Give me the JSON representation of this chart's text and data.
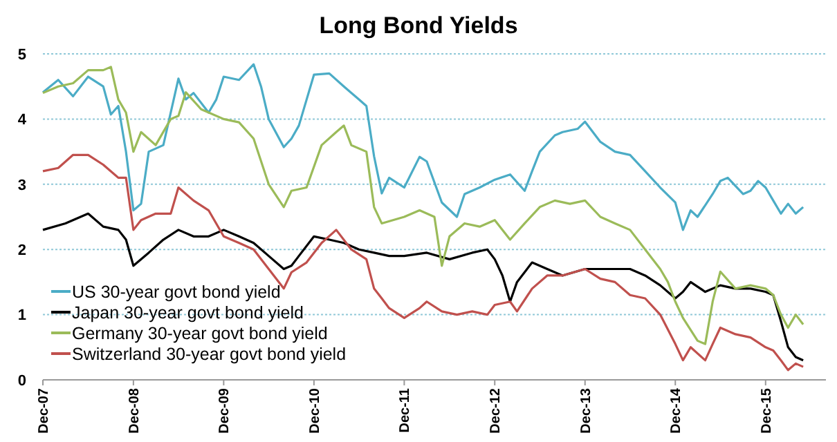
{
  "chart_data": {
    "type": "line",
    "title": "Long Bond Yields",
    "xlim": [
      "2007-12-01",
      "2016-08-01"
    ],
    "xticks": [
      {
        "value": "2007-12-01",
        "label": "Dec-07"
      },
      {
        "value": "2008-12-01",
        "label": "Dec-08"
      },
      {
        "value": "2009-12-01",
        "label": "Dec-09"
      },
      {
        "value": "2010-12-01",
        "label": "Dec-10"
      },
      {
        "value": "2011-12-01",
        "label": "Dec-11"
      },
      {
        "value": "2012-12-01",
        "label": "Dec-12"
      },
      {
        "value": "2013-12-01",
        "label": "Dec-13"
      },
      {
        "value": "2014-12-01",
        "label": "Dec-14"
      },
      {
        "value": "2015-12-01",
        "label": "Dec-15"
      }
    ],
    "ylim": [
      0,
      5
    ],
    "yticks": [
      0,
      1,
      2,
      3,
      4,
      5
    ],
    "grid": "y",
    "legend": "bottom left",
    "marker": "none",
    "line_style": "solid",
    "series": [
      {
        "name": "US 30-year govt bond yield",
        "color": "#4bacc6",
        "x": [
          "2007-12",
          "2008-02",
          "2008-04",
          "2008-06",
          "2008-08",
          "2008-09",
          "2008-10",
          "2008-11",
          "2008-12",
          "2009-01",
          "2009-02",
          "2009-04",
          "2009-06",
          "2009-07",
          "2009-08",
          "2009-10",
          "2009-11",
          "2009-12",
          "2010-02",
          "2010-04",
          "2010-05",
          "2010-06",
          "2010-08",
          "2010-09",
          "2010-10",
          "2010-12",
          "2011-02",
          "2011-04",
          "2011-06",
          "2011-07",
          "2011-08",
          "2011-09",
          "2011-10",
          "2011-12",
          "2012-02",
          "2012-03",
          "2012-05",
          "2012-07",
          "2012-08",
          "2012-10",
          "2012-12",
          "2013-02",
          "2013-04",
          "2013-05",
          "2013-06",
          "2013-08",
          "2013-09",
          "2013-11",
          "2013-12",
          "2014-02",
          "2014-04",
          "2014-06",
          "2014-08",
          "2014-10",
          "2014-12",
          "2015-01",
          "2015-02",
          "2015-03",
          "2015-05",
          "2015-06",
          "2015-07",
          "2015-09",
          "2015-10",
          "2015-11",
          "2015-12",
          "2016-01",
          "2016-02",
          "2016-03",
          "2016-04",
          "2016-05"
        ],
        "values": [
          4.41,
          4.6,
          4.35,
          4.65,
          4.5,
          4.07,
          4.2,
          3.5,
          2.6,
          2.7,
          3.5,
          3.6,
          4.62,
          4.3,
          4.4,
          4.1,
          4.3,
          4.65,
          4.6,
          4.84,
          4.5,
          4.0,
          3.57,
          3.7,
          3.9,
          4.68,
          4.7,
          4.5,
          4.3,
          4.2,
          3.43,
          2.86,
          3.1,
          2.95,
          3.42,
          3.35,
          2.72,
          2.5,
          2.85,
          2.95,
          3.07,
          3.15,
          2.9,
          3.2,
          3.5,
          3.75,
          3.8,
          3.85,
          3.96,
          3.65,
          3.5,
          3.45,
          3.2,
          2.95,
          2.72,
          2.3,
          2.6,
          2.5,
          2.85,
          3.05,
          3.1,
          2.85,
          2.9,
          3.05,
          2.95,
          2.75,
          2.55,
          2.7,
          2.55,
          2.65
        ]
      },
      {
        "name": "Japan 30-year govt bond yield",
        "color": "#000000",
        "x": [
          "2007-12",
          "2008-03",
          "2008-06",
          "2008-08",
          "2008-10",
          "2008-11",
          "2008-12",
          "2009-02",
          "2009-04",
          "2009-06",
          "2009-08",
          "2009-10",
          "2009-12",
          "2010-02",
          "2010-04",
          "2010-06",
          "2010-08",
          "2010-09",
          "2010-10",
          "2010-12",
          "2011-02",
          "2011-04",
          "2011-06",
          "2011-08",
          "2011-10",
          "2011-12",
          "2012-03",
          "2012-06",
          "2012-09",
          "2012-11",
          "2012-12",
          "2013-01",
          "2013-02",
          "2013-03",
          "2013-05",
          "2013-07",
          "2013-09",
          "2013-12",
          "2014-03",
          "2014-06",
          "2014-08",
          "2014-10",
          "2014-12",
          "2015-01",
          "2015-02",
          "2015-04",
          "2015-06",
          "2015-08",
          "2015-10",
          "2015-12",
          "2016-01",
          "2016-02",
          "2016-03",
          "2016-04",
          "2016-05"
        ],
        "values": [
          2.3,
          2.4,
          2.55,
          2.35,
          2.3,
          2.15,
          1.75,
          1.95,
          2.15,
          2.3,
          2.2,
          2.2,
          2.3,
          2.2,
          2.1,
          1.9,
          1.7,
          1.75,
          1.9,
          2.2,
          2.15,
          2.1,
          2.0,
          1.95,
          1.9,
          1.9,
          1.95,
          1.85,
          1.95,
          2.0,
          1.85,
          1.6,
          1.2,
          1.5,
          1.8,
          1.7,
          1.6,
          1.7,
          1.7,
          1.7,
          1.6,
          1.45,
          1.25,
          1.35,
          1.5,
          1.35,
          1.45,
          1.4,
          1.4,
          1.35,
          1.3,
          0.9,
          0.5,
          0.35,
          0.3
        ]
      },
      {
        "name": "Germany 30-year govt bond yield",
        "color": "#9bbb59",
        "x": [
          "2007-12",
          "2008-02",
          "2008-04",
          "2008-06",
          "2008-08",
          "2008-09",
          "2008-10",
          "2008-11",
          "2008-12",
          "2009-01",
          "2009-03",
          "2009-05",
          "2009-06",
          "2009-07",
          "2009-09",
          "2009-12",
          "2010-02",
          "2010-04",
          "2010-06",
          "2010-08",
          "2010-09",
          "2010-11",
          "2011-01",
          "2011-03",
          "2011-04",
          "2011-05",
          "2011-07",
          "2011-08",
          "2011-09",
          "2011-12",
          "2012-02",
          "2012-04",
          "2012-05",
          "2012-06",
          "2012-08",
          "2012-10",
          "2012-12",
          "2013-02",
          "2013-04",
          "2013-06",
          "2013-08",
          "2013-10",
          "2013-12",
          "2014-02",
          "2014-04",
          "2014-06",
          "2014-08",
          "2014-10",
          "2014-11",
          "2014-12",
          "2015-01",
          "2015-03",
          "2015-04",
          "2015-05",
          "2015-06",
          "2015-08",
          "2015-10",
          "2015-12",
          "2016-01",
          "2016-02",
          "2016-03",
          "2016-04",
          "2016-05"
        ],
        "values": [
          4.4,
          4.5,
          4.55,
          4.75,
          4.75,
          4.8,
          4.3,
          4.1,
          3.5,
          3.8,
          3.6,
          4.0,
          4.05,
          4.41,
          4.15,
          4.0,
          3.95,
          3.7,
          3.0,
          2.65,
          2.9,
          2.95,
          3.6,
          3.8,
          3.9,
          3.6,
          3.5,
          2.65,
          2.4,
          2.5,
          2.6,
          2.5,
          1.75,
          2.2,
          2.4,
          2.35,
          2.45,
          2.15,
          2.4,
          2.65,
          2.75,
          2.7,
          2.75,
          2.5,
          2.4,
          2.3,
          2.0,
          1.7,
          1.5,
          1.2,
          0.95,
          0.6,
          0.55,
          1.2,
          1.66,
          1.4,
          1.45,
          1.4,
          1.3,
          1.0,
          0.8,
          1.0,
          0.85
        ]
      },
      {
        "name": "Switzerland 30-year govt bond yield",
        "color": "#c0504d",
        "x": [
          "2007-12",
          "2008-02",
          "2008-04",
          "2008-06",
          "2008-08",
          "2008-10",
          "2008-11",
          "2008-12",
          "2009-01",
          "2009-03",
          "2009-05",
          "2009-06",
          "2009-08",
          "2009-10",
          "2009-12",
          "2010-02",
          "2010-04",
          "2010-06",
          "2010-08",
          "2010-09",
          "2010-11",
          "2011-01",
          "2011-03",
          "2011-05",
          "2011-07",
          "2011-08",
          "2011-09",
          "2011-10",
          "2011-12",
          "2012-02",
          "2012-03",
          "2012-05",
          "2012-07",
          "2012-09",
          "2012-11",
          "2012-12",
          "2013-02",
          "2013-03",
          "2013-05",
          "2013-07",
          "2013-09",
          "2013-12",
          "2014-02",
          "2014-04",
          "2014-06",
          "2014-08",
          "2014-10",
          "2014-12",
          "2015-01",
          "2015-02",
          "2015-04",
          "2015-05",
          "2015-06",
          "2015-08",
          "2015-10",
          "2015-12",
          "2016-01",
          "2016-02",
          "2016-03",
          "2016-04",
          "2016-05"
        ],
        "values": [
          3.2,
          3.25,
          3.45,
          3.45,
          3.3,
          3.1,
          3.1,
          2.3,
          2.45,
          2.55,
          2.55,
          2.95,
          2.75,
          2.6,
          2.2,
          2.1,
          2.0,
          1.7,
          1.4,
          1.65,
          1.8,
          2.1,
          2.3,
          2.0,
          1.85,
          1.4,
          1.25,
          1.1,
          0.95,
          1.1,
          1.2,
          1.05,
          1.0,
          1.05,
          1.0,
          1.15,
          1.2,
          1.05,
          1.4,
          1.6,
          1.6,
          1.7,
          1.55,
          1.5,
          1.3,
          1.25,
          1.0,
          0.55,
          0.3,
          0.5,
          0.3,
          0.55,
          0.8,
          0.7,
          0.65,
          0.5,
          0.45,
          0.3,
          0.15,
          0.25,
          0.2
        ]
      }
    ]
  }
}
